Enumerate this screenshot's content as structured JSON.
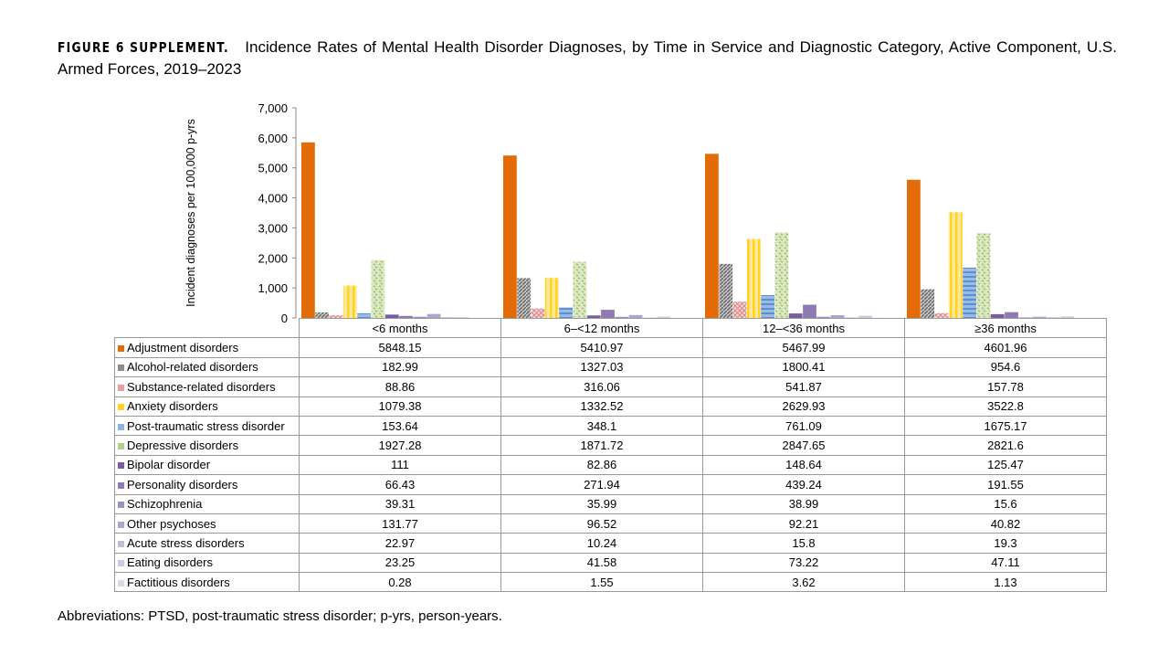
{
  "title": {
    "label": "FIGURE 6 SUPPLEMENT.",
    "text": "Incidence Rates of Mental Health Disorder Diagnoses, by Time in Service and Diagnostic Category, Active Component,  U.S. Armed Forces, 2019–2023"
  },
  "abbreviations": "Abbreviations: PTSD, post-traumatic stress disorder; p-yrs, person-years.",
  "chart_data": {
    "type": "bar",
    "ylabel": "Incident diagnoses per 100,000 p-yrs",
    "ylim": [
      0,
      7000
    ],
    "yticks": [
      "0",
      "1,000",
      "2,000",
      "3,000",
      "4,000",
      "5,000",
      "6,000",
      "7,000"
    ],
    "categories": [
      "<6 months",
      "6–<12 months",
      "12–<36 months",
      "≥36 months"
    ],
    "series": [
      {
        "name": "Adjustment disorders",
        "color": "#e36c09",
        "values": [
          5848.15,
          5410.97,
          5467.99,
          4601.96
        ]
      },
      {
        "name": "Alcohol-related disorders",
        "color": "#8c8c8c",
        "values": [
          182.99,
          1327.03,
          1800.41,
          954.6
        ]
      },
      {
        "name": "Substance-related disorders",
        "color": "#e6a0a0",
        "values": [
          88.86,
          316.06,
          541.87,
          157.78
        ]
      },
      {
        "name": "Anxiety disorders",
        "color": "#ffd320",
        "values": [
          1079.38,
          1332.52,
          2629.93,
          3522.8
        ]
      },
      {
        "name": "Post-traumatic stress disorder",
        "color": "#8db3e2",
        "values": [
          153.64,
          348.1,
          761.09,
          1675.17
        ]
      },
      {
        "name": "Depressive disorders",
        "color": "#9bbb59",
        "values": [
          1927.28,
          1871.72,
          2847.65,
          2821.6
        ]
      },
      {
        "name": "Bipolar disorder",
        "color": "#7a5ca0",
        "values": [
          111,
          82.86,
          148.64,
          125.47
        ]
      },
      {
        "name": "Personality disorders",
        "color": "#8f7bb4",
        "values": [
          66.43,
          271.94,
          439.24,
          191.55
        ]
      },
      {
        "name": "Schizophrenia",
        "color": "#9d8fc0",
        "values": [
          39.31,
          35.99,
          38.99,
          15.6
        ]
      },
      {
        "name": "Other psychoses",
        "color": "#b0a3cc",
        "values": [
          131.77,
          96.52,
          92.21,
          40.82
        ]
      },
      {
        "name": "Acute stress disorders",
        "color": "#c3bbd8",
        "values": [
          22.97,
          10.24,
          15.8,
          19.3
        ]
      },
      {
        "name": "Eating disorders",
        "color": "#cfc9e0",
        "values": [
          23.25,
          41.58,
          73.22,
          47.11
        ]
      },
      {
        "name": "Factitious disorders",
        "color": "#dcd8e8",
        "values": [
          0.28,
          1.55,
          3.62,
          1.13
        ]
      }
    ]
  }
}
